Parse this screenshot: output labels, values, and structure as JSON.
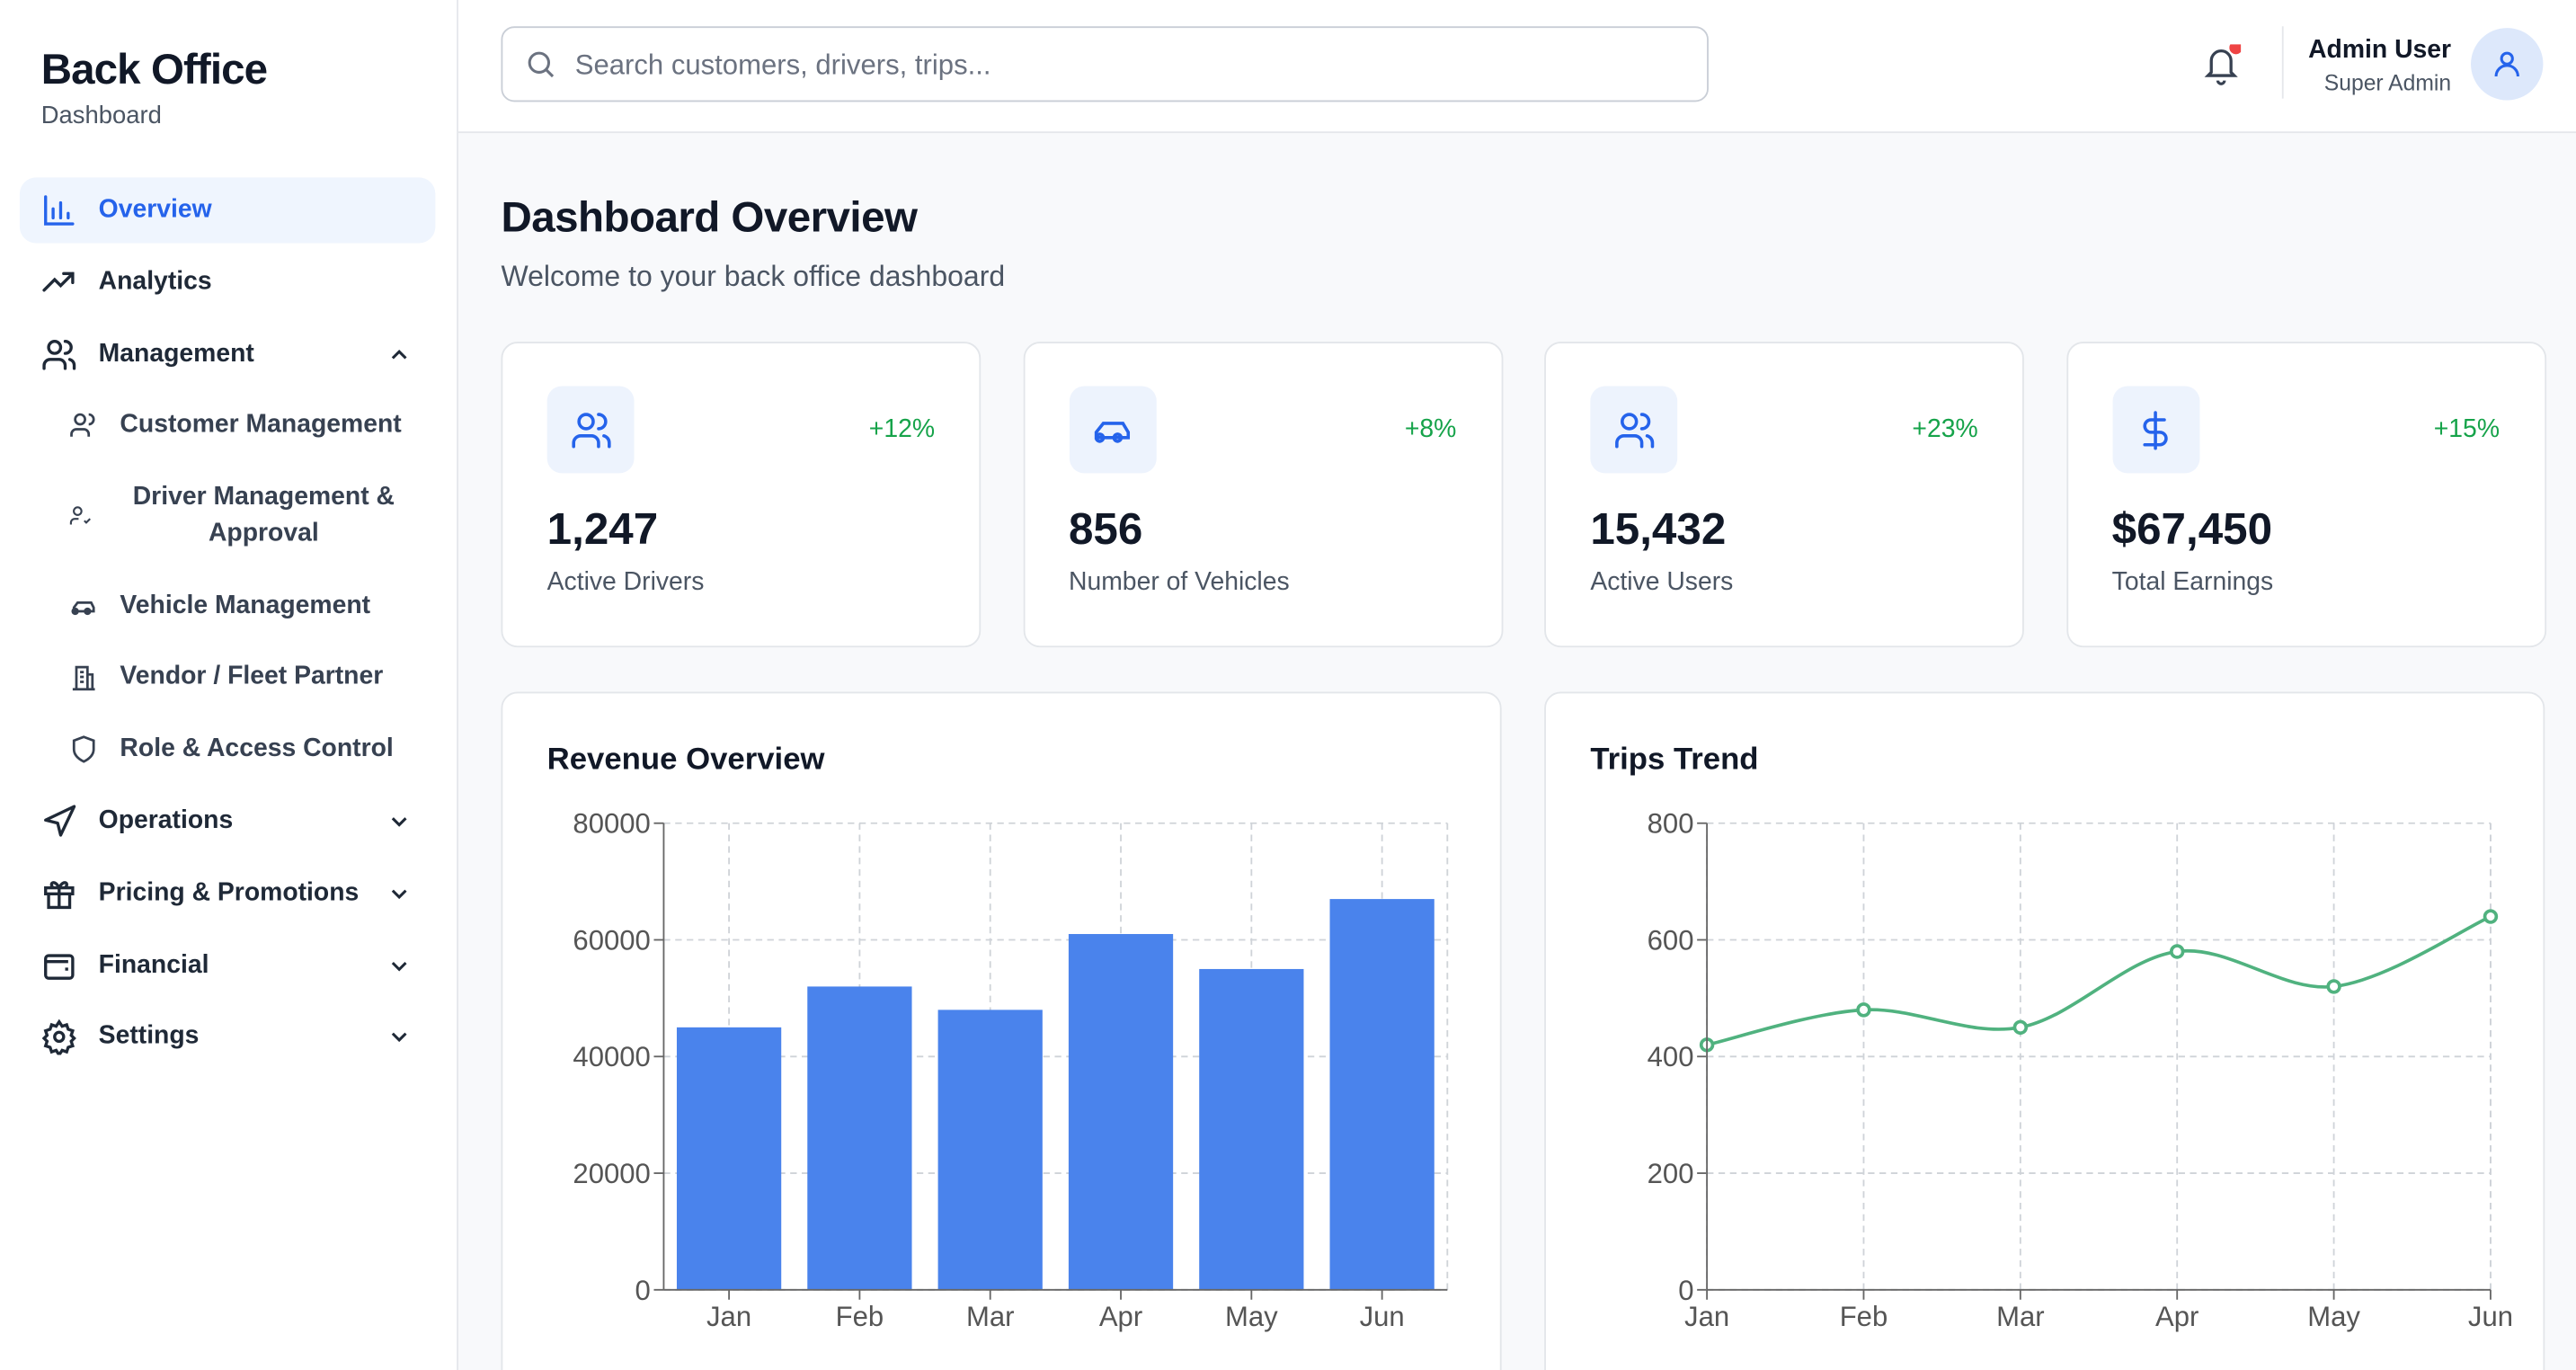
{
  "sidebar": {
    "title": "Back Office",
    "subtitle": "Dashboard",
    "nav": [
      {
        "label": "Overview"
      },
      {
        "label": "Analytics"
      },
      {
        "label": "Management",
        "children": [
          "Customer Management",
          "Driver Management & Approval",
          "Vehicle Management",
          "Vendor / Fleet Partner",
          "Role & Access Control"
        ]
      },
      {
        "label": "Operations"
      },
      {
        "label": "Pricing & Promotions"
      },
      {
        "label": "Financial"
      },
      {
        "label": "Settings"
      }
    ]
  },
  "header": {
    "search_placeholder": "Search customers, drivers, trips...",
    "user_name": "Admin User",
    "user_role": "Super Admin"
  },
  "page": {
    "title": "Dashboard Overview",
    "subtitle": "Welcome to your back office dashboard"
  },
  "stats": [
    {
      "value": "1,247",
      "label": "Active Drivers",
      "change": "+12%"
    },
    {
      "value": "856",
      "label": "Number of Vehicles",
      "change": "+8%"
    },
    {
      "value": "15,432",
      "label": "Active Users",
      "change": "+23%"
    },
    {
      "value": "$67,450",
      "label": "Total Earnings",
      "change": "+15%"
    }
  ],
  "charts": [
    {
      "type": "bar",
      "title": "Revenue Overview",
      "categories": [
        "Jan",
        "Feb",
        "Mar",
        "Apr",
        "May",
        "Jun"
      ],
      "values": [
        45000,
        52000,
        48000,
        61000,
        55000,
        67000
      ],
      "color": "#4a83ec",
      "ylim": [
        0,
        80000
      ],
      "yticks": [
        0,
        20000,
        40000,
        60000,
        80000
      ],
      "grid": true
    },
    {
      "type": "line",
      "title": "Trips Trend",
      "categories": [
        "Jan",
        "Feb",
        "Mar",
        "Apr",
        "May",
        "Jun"
      ],
      "values": [
        420,
        480,
        450,
        580,
        520,
        640
      ],
      "color": "#50b27f",
      "ylim": [
        0,
        800
      ],
      "yticks": [
        0,
        200,
        400,
        600,
        800
      ],
      "grid": true
    }
  ]
}
